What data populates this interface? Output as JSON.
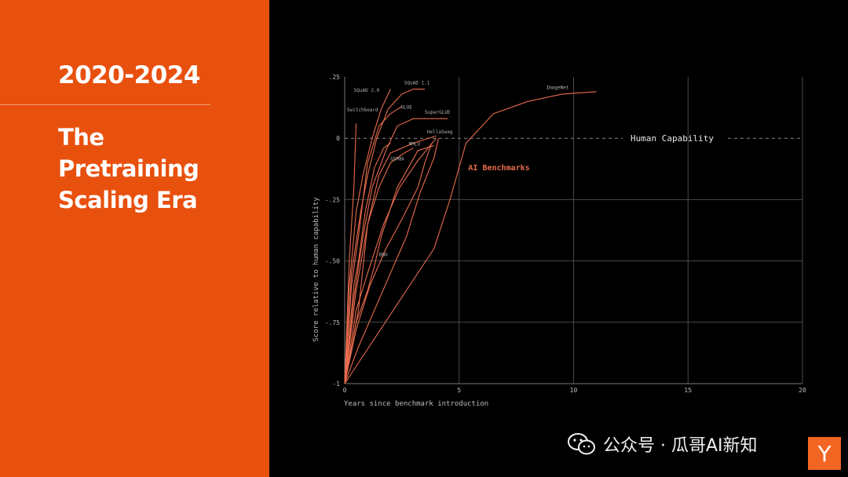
{
  "slide": {
    "year_range": "2020-2024",
    "title_lines": [
      "The",
      "Pretraining",
      "Scaling Era"
    ]
  },
  "watermark": {
    "text": "公众号 · 瓜哥AI新知",
    "icon": "wechat-icon"
  },
  "logo": {
    "text": "Y"
  },
  "colors": {
    "panel": "#e8500e",
    "series": "#e86c4d",
    "background": "#000000",
    "grid": "#555555",
    "logo": "#f26522"
  },
  "chart_data": {
    "type": "line",
    "title": "",
    "xlabel": "Years since benchmark introduction",
    "ylabel": "Score relative to human capability",
    "xlim": [
      0,
      20
    ],
    "ylim": [
      -1,
      0.25
    ],
    "x_ticks": [
      0,
      5,
      10,
      15,
      20
    ],
    "x_tick_labels": [
      "0",
      "5",
      "10",
      "15",
      "20"
    ],
    "y_ticks": [
      0.25,
      0,
      -0.25,
      -0.5,
      -0.75,
      -1
    ],
    "y_tick_labels": [
      ".25",
      "0",
      "-.25",
      "-.50",
      "-.75",
      "-1"
    ],
    "grid": true,
    "series_title": "AI Benchmarks",
    "reference_line": {
      "y": 0,
      "label": "Human Capability"
    },
    "series": [
      {
        "name": "SQuAD 2.0",
        "points": [
          [
            0,
            -1
          ],
          [
            0.2,
            -0.6
          ],
          [
            0.5,
            -0.3
          ],
          [
            0.8,
            -0.15
          ],
          [
            1.2,
            0
          ],
          [
            1.6,
            0.12
          ],
          [
            2,
            0.2
          ]
        ]
      },
      {
        "name": "SQuAD 1.1",
        "points": [
          [
            0,
            -1
          ],
          [
            0.3,
            -0.55
          ],
          [
            0.7,
            -0.3
          ],
          [
            1,
            -0.15
          ],
          [
            1.4,
            0
          ],
          [
            1.9,
            0.12
          ],
          [
            2.5,
            0.18
          ],
          [
            3,
            0.2
          ],
          [
            3.5,
            0.2
          ]
        ]
      },
      {
        "name": "Switchboard",
        "points": [
          [
            0,
            -1
          ],
          [
            0.2,
            -0.5
          ],
          [
            0.4,
            -0.2
          ],
          [
            0.5,
            0.06
          ]
        ]
      },
      {
        "name": "GLUE",
        "points": [
          [
            0,
            -1
          ],
          [
            0.3,
            -0.6
          ],
          [
            0.6,
            -0.4
          ],
          [
            1,
            -0.1
          ],
          [
            1.5,
            0.05
          ],
          [
            2,
            0.1
          ],
          [
            2.5,
            0.13
          ]
        ]
      },
      {
        "name": "SuperGLUE",
        "points": [
          [
            0,
            -1
          ],
          [
            0.4,
            -0.65
          ],
          [
            0.8,
            -0.4
          ],
          [
            1.2,
            -0.2
          ],
          [
            1.8,
            -0.05
          ],
          [
            2.3,
            0.05
          ],
          [
            3,
            0.08
          ],
          [
            4.5,
            0.08
          ]
        ]
      },
      {
        "name": "HellaSwag",
        "points": [
          [
            0,
            -1
          ],
          [
            0.6,
            -0.7
          ],
          [
            1,
            -0.35
          ],
          [
            1.5,
            -0.15
          ],
          [
            2,
            -0.06
          ],
          [
            3,
            -0.02
          ],
          [
            4,
            0.01
          ]
        ]
      },
      {
        "name": "MMLU",
        "points": [
          [
            0,
            -1
          ],
          [
            0.5,
            -0.62
          ],
          [
            1,
            -0.35
          ],
          [
            1.5,
            -0.2
          ],
          [
            2,
            -0.1
          ],
          [
            2.6,
            -0.06
          ],
          [
            3,
            -0.04
          ]
        ]
      },
      {
        "name": "GSM8k",
        "points": [
          [
            0,
            -1
          ],
          [
            0.4,
            -0.6
          ],
          [
            0.6,
            -0.5
          ],
          [
            0.9,
            -0.3
          ],
          [
            1.3,
            -0.12
          ],
          [
            1.7,
            -0.04
          ],
          [
            2,
            -0.02
          ]
        ]
      },
      {
        "name": "BBH",
        "points": [
          [
            0,
            -1
          ],
          [
            0.5,
            -0.75
          ],
          [
            1,
            -0.62
          ],
          [
            1.3,
            -0.52
          ],
          [
            1.6,
            -0.4
          ],
          [
            2.3,
            -0.2
          ],
          [
            3.2,
            -0.05
          ],
          [
            3.9,
            -0.03
          ]
        ]
      },
      {
        "name": "",
        "points": [
          [
            0,
            -1
          ],
          [
            0.5,
            -0.7
          ],
          [
            1,
            -0.55
          ],
          [
            1.7,
            -0.35
          ],
          [
            2.4,
            -0.2
          ],
          [
            3.2,
            -0.09
          ],
          [
            4,
            0
          ]
        ]
      },
      {
        "name": "",
        "points": [
          [
            0,
            -1
          ],
          [
            0.5,
            -0.78
          ],
          [
            1.1,
            -0.6
          ],
          [
            1.8,
            -0.45
          ],
          [
            2.5,
            -0.33
          ],
          [
            3.2,
            -0.2
          ],
          [
            3.5,
            -0.1
          ],
          [
            3.8,
            -0.02
          ]
        ]
      },
      {
        "name": "",
        "points": [
          [
            0,
            -1
          ],
          [
            0.6,
            -0.85
          ],
          [
            1.3,
            -0.7
          ],
          [
            2,
            -0.55
          ],
          [
            2.7,
            -0.4
          ],
          [
            3.3,
            -0.22
          ],
          [
            3.9,
            -0.08
          ],
          [
            4.1,
            0
          ]
        ]
      },
      {
        "name": "ImageNet",
        "points": [
          [
            0,
            -1
          ],
          [
            3.9,
            -0.45
          ],
          [
            4.6,
            -0.25
          ],
          [
            5.3,
            -0.02
          ],
          [
            6.5,
            0.1
          ],
          [
            8,
            0.15
          ],
          [
            9.5,
            0.18
          ],
          [
            11,
            0.19
          ]
        ]
      }
    ],
    "label_positions": [
      {
        "name": "SQuAD 2.0",
        "x": 0.4,
        "y": 0.19
      },
      {
        "name": "SQuAD 1.1",
        "x": 2.6,
        "y": 0.22
      },
      {
        "name": "Switchboard",
        "x": 0.1,
        "y": 0.11
      },
      {
        "name": "GLUE",
        "x": 2.45,
        "y": 0.12
      },
      {
        "name": "SuperGLUE",
        "x": 3.5,
        "y": 0.1
      },
      {
        "name": "HellaSwag",
        "x": 3.6,
        "y": 0.02
      },
      {
        "name": "MMLU",
        "x": 2.8,
        "y": -0.03
      },
      {
        "name": "GSM8k",
        "x": 2.0,
        "y": -0.09
      },
      {
        "name": "BBH",
        "x": 1.5,
        "y": -0.48
      },
      {
        "name": "ImageNet",
        "x": 8.8,
        "y": 0.2
      }
    ]
  }
}
